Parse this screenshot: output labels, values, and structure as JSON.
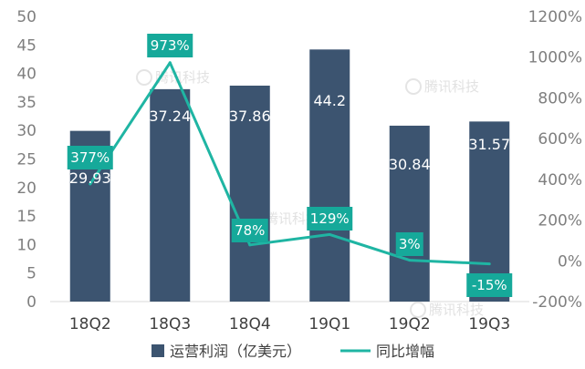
{
  "chart_data": {
    "type": "bar",
    "categories": [
      "18Q2",
      "18Q3",
      "18Q4",
      "19Q1",
      "19Q2",
      "19Q3"
    ],
    "series": [
      {
        "name": "运营利润（亿美元）",
        "type": "bar",
        "axis": "left",
        "values": [
          29.93,
          37.24,
          37.86,
          44.2,
          30.84,
          31.57
        ],
        "value_labels": [
          "29.93",
          "37.24",
          "37.86",
          "44.2",
          "30.84",
          "31.57"
        ]
      },
      {
        "name": "同比增幅",
        "type": "line",
        "axis": "right",
        "values": [
          377,
          973,
          78,
          129,
          3,
          -15
        ],
        "value_labels": [
          "377%",
          "973%",
          "78%",
          "129%",
          "3%",
          "-15%"
        ]
      }
    ],
    "left_axis": {
      "min": 0,
      "max": 50,
      "ticks": [
        "0",
        "5",
        "10",
        "15",
        "20",
        "25",
        "30",
        "35",
        "40",
        "45",
        "50"
      ]
    },
    "right_axis": {
      "min": -200,
      "max": 1200,
      "ticks": [
        "-200%",
        "0%",
        "200%",
        "400%",
        "600%",
        "800%",
        "1000%",
        "1200%"
      ]
    },
    "colors": {
      "bar": "#3c5470",
      "line": "#1fb5a3",
      "label_box": "#16a99a"
    },
    "legend_position": "bottom",
    "grid": false
  },
  "watermark": {
    "text": "腾讯科技"
  }
}
